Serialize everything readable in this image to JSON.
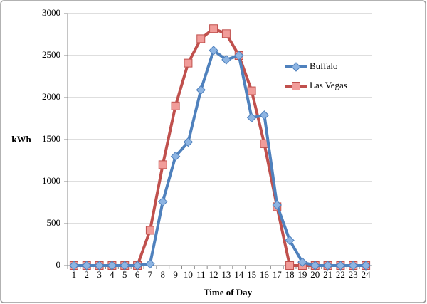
{
  "chart_data": {
    "type": "line",
    "x_label": "Time of Day",
    "y_label": "kWh",
    "categories": [
      "1",
      "2",
      "3",
      "4",
      "5",
      "6",
      "7",
      "8",
      "9",
      "10",
      "11",
      "12",
      "13",
      "14",
      "15",
      "16",
      "17",
      "18",
      "19",
      "20",
      "21",
      "22",
      "23",
      "24"
    ],
    "series": [
      {
        "name": "Buffalo",
        "color": "#4f81bd",
        "marker": "diamond",
        "values": [
          0,
          0,
          0,
          0,
          0,
          0,
          20,
          760,
          1300,
          1470,
          2090,
          2560,
          2450,
          2500,
          1760,
          1790,
          720,
          300,
          40,
          0,
          0,
          0,
          0,
          0
        ]
      },
      {
        "name": "Las Vegas",
        "color": "#c0504d",
        "marker": "square",
        "values": [
          0,
          0,
          0,
          0,
          0,
          0,
          420,
          1200,
          1900,
          2410,
          2700,
          2820,
          2760,
          2500,
          2080,
          1450,
          700,
          0,
          0,
          0,
          0,
          0,
          0,
          0
        ]
      }
    ],
    "ylim": [
      0,
      3000
    ],
    "yticks": [
      0,
      500,
      1000,
      1500,
      2000,
      2500,
      3000
    ],
    "grid": true,
    "legend": "right"
  }
}
